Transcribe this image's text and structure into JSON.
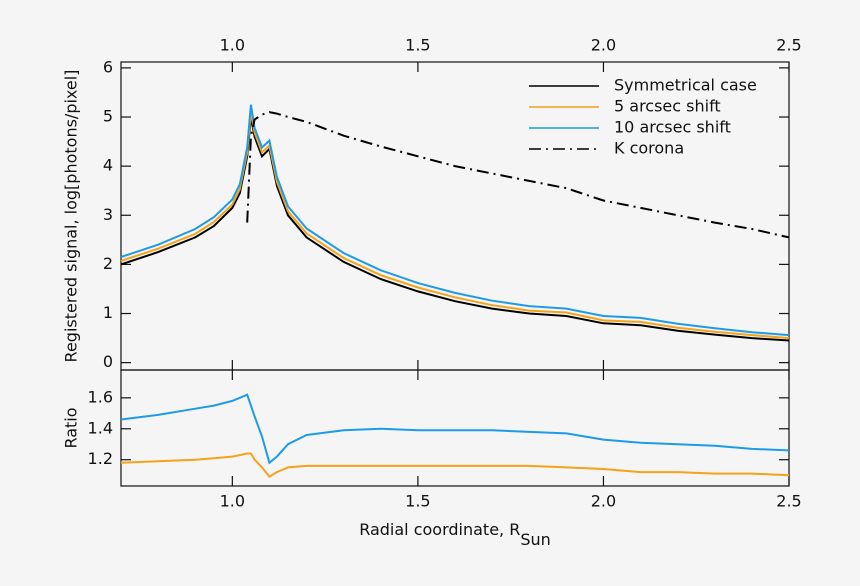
{
  "chart_data": [
    {
      "type": "line",
      "ylabel": "Registered signal, log[photons/pixel]",
      "x": [
        0.7,
        0.8,
        0.9,
        0.95,
        1.0,
        1.02,
        1.04,
        1.05,
        1.06,
        1.08,
        1.1,
        1.12,
        1.15,
        1.2,
        1.3,
        1.4,
        1.5,
        1.6,
        1.7,
        1.8,
        1.9,
        2.0,
        2.1,
        2.2,
        2.3,
        2.4,
        2.5
      ],
      "xlim": [
        0.7,
        2.5
      ],
      "xticks": [
        {
          "value": 1,
          "label": "1.0"
        },
        1.5,
        {
          "value": 2,
          "label": "2.0"
        },
        2.5
      ],
      "xtick_labels_position": "top",
      "ylim": [
        -0.15,
        6.12
      ],
      "yticks": [
        0,
        1,
        2,
        3,
        4,
        5,
        6
      ],
      "legend": "upper right",
      "series": [
        {
          "name": "Symmetrical case",
          "color": "#000000",
          "dash": "solid",
          "values": [
            2.0,
            2.25,
            2.55,
            2.78,
            3.15,
            3.45,
            4.2,
            5.0,
            4.6,
            4.2,
            4.35,
            3.6,
            3.0,
            2.55,
            2.05,
            1.7,
            1.45,
            1.25,
            1.1,
            1.0,
            0.95,
            0.8,
            0.76,
            0.65,
            0.57,
            0.5,
            0.45
          ]
        },
        {
          "name": "5 arcsec shift",
          "color": "#f5a21b",
          "dash": "solid",
          "values": [
            2.07,
            2.32,
            2.62,
            2.86,
            3.22,
            3.53,
            4.28,
            5.1,
            4.68,
            4.28,
            4.42,
            3.68,
            3.08,
            2.63,
            2.13,
            1.78,
            1.53,
            1.33,
            1.17,
            1.06,
            1.02,
            0.86,
            0.83,
            0.71,
            0.63,
            0.56,
            0.5
          ]
        },
        {
          "name": "10 arcsec shift",
          "color": "#1e9be8",
          "dash": "solid",
          "values": [
            2.15,
            2.4,
            2.72,
            2.96,
            3.32,
            3.63,
            4.38,
            5.25,
            4.78,
            4.38,
            4.52,
            3.78,
            3.18,
            2.73,
            2.23,
            1.88,
            1.62,
            1.42,
            1.26,
            1.15,
            1.1,
            0.95,
            0.91,
            0.79,
            0.7,
            0.62,
            0.56
          ]
        },
        {
          "name": "K corona",
          "color": "#000000",
          "dash": "dashdot",
          "values": [
            null,
            null,
            null,
            null,
            null,
            null,
            2.85,
            4.6,
            4.95,
            5.05,
            5.1,
            5.07,
            5.0,
            4.9,
            4.62,
            4.4,
            4.2,
            4.0,
            3.85,
            3.7,
            3.55,
            3.3,
            3.15,
            3.0,
            2.85,
            2.72,
            2.55
          ]
        }
      ]
    },
    {
      "type": "line",
      "ylabel": "Ratio",
      "xlabel": "Radial coordinate, R",
      "xlabel_sub": "Sun",
      "x": [
        0.7,
        0.8,
        0.9,
        0.95,
        1.0,
        1.02,
        1.04,
        1.05,
        1.06,
        1.08,
        1.1,
        1.12,
        1.15,
        1.2,
        1.3,
        1.4,
        1.5,
        1.6,
        1.7,
        1.8,
        1.9,
        2.0,
        2.1,
        2.2,
        2.3,
        2.4,
        2.5
      ],
      "xlim": [
        0.7,
        2.5
      ],
      "xticks": [
        {
          "value": 1,
          "label": "1.0"
        },
        1.5,
        {
          "value": 2,
          "label": "2.0"
        },
        2.5
      ],
      "xtick_labels_position": "bottom",
      "ylim": [
        1.03,
        1.78
      ],
      "yticks": [
        1.2,
        1.4,
        1.6
      ],
      "series": [
        {
          "color": "#f5a21b",
          "dash": "solid",
          "values": [
            1.18,
            1.19,
            1.2,
            1.21,
            1.22,
            1.23,
            1.24,
            1.24,
            1.2,
            1.15,
            1.09,
            1.12,
            1.15,
            1.16,
            1.16,
            1.16,
            1.16,
            1.16,
            1.16,
            1.16,
            1.15,
            1.14,
            1.12,
            1.12,
            1.11,
            1.11,
            1.1
          ]
        },
        {
          "color": "#1e9be8",
          "dash": "solid",
          "values": [
            1.46,
            1.49,
            1.53,
            1.55,
            1.58,
            1.6,
            1.62,
            1.55,
            1.48,
            1.35,
            1.18,
            1.22,
            1.3,
            1.36,
            1.39,
            1.4,
            1.39,
            1.39,
            1.39,
            1.38,
            1.37,
            1.33,
            1.31,
            1.3,
            1.29,
            1.27,
            1.26
          ]
        }
      ]
    }
  ]
}
